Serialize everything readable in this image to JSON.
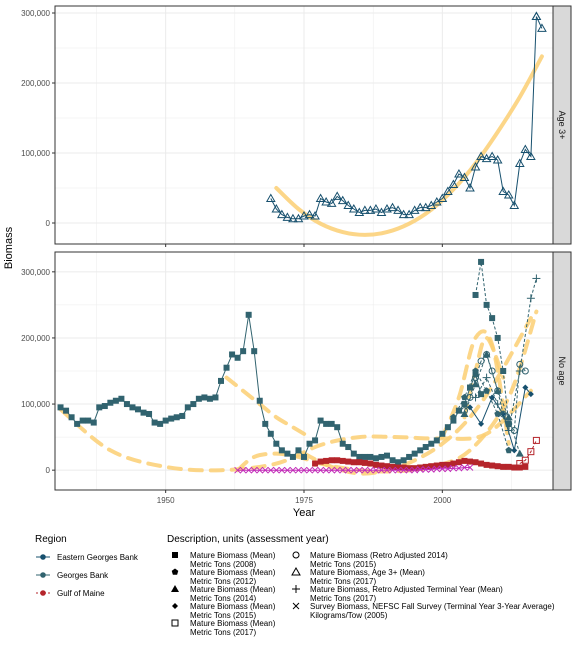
{
  "chart_data": {
    "type": "line",
    "xlabel": "Year",
    "ylabel": "Biomass",
    "xlim": [
      1930,
      2020
    ],
    "x_ticks": [
      1950,
      1975,
      2000
    ],
    "x_tick_labels": [
      "1950",
      "1975",
      "2000"
    ],
    "panels": [
      {
        "strip": "Age 3+",
        "ylim": [
          -30000,
          310000
        ],
        "y_ticks": [
          0,
          100000,
          200000,
          300000
        ],
        "y_tick_labels": [
          "0",
          "100,000",
          "200,000",
          "300,000"
        ],
        "series": [
          {
            "region": "Eastern Georges Bank",
            "marker": "triangle",
            "dashed": false,
            "x": [
              1969,
              1970,
              1971,
              1972,
              1973,
              1974,
              1975,
              1976,
              1977,
              1978,
              1979,
              1980,
              1981,
              1982,
              1983,
              1984,
              1985,
              1986,
              1987,
              1988,
              1989,
              1990,
              1991,
              1992,
              1993,
              1994,
              1995,
              1996,
              1997,
              1998,
              1999,
              2000,
              2001,
              2002,
              2003,
              2004,
              2005,
              2006,
              2007,
              2008,
              2009,
              2010,
              2011,
              2012,
              2013,
              2014,
              2015,
              2016,
              2017
            ],
            "y": [
              35000,
              20000,
              12000,
              8000,
              6000,
              6000,
              10000,
              12000,
              10000,
              35000,
              30000,
              28000,
              38000,
              32000,
              25000,
              20000,
              15000,
              18000,
              18000,
              20000,
              15000,
              20000,
              22000,
              18000,
              12000,
              12000,
              18000,
              22000,
              22000,
              25000,
              30000,
              35000,
              45000,
              55000,
              70000,
              65000,
              50000,
              80000,
              95000,
              92000,
              95000,
              90000,
              45000,
              40000,
              25000,
              85000,
              105000,
              95000,
              295000
            ]
          },
          {
            "region": "Eastern Georges Bank",
            "marker": "triangle",
            "dashed": false,
            "x": [
              2017,
              2018
            ],
            "y": [
              295000,
              278000
            ]
          }
        ],
        "trend": [
          {
            "color": "#fccf73",
            "dashed": false,
            "x": [
              1970,
              1974,
              1978,
              1982,
              1986,
              1990,
              1994,
              1998,
              2002,
              2006,
              2010,
              2014,
              2018
            ],
            "y": [
              50000,
              20000,
              -1000,
              -13000,
              -17000,
              -13000,
              -1000,
              19000,
              48000,
              85000,
              130000,
              180000,
              238000
            ]
          }
        ]
      },
      {
        "strip": "No age",
        "ylim": [
          -30000,
          330000
        ],
        "y_ticks": [
          0,
          100000,
          200000,
          300000
        ],
        "y_tick_labels": [
          "0",
          "100,000",
          "200,000",
          "300,000"
        ],
        "series": [
          {
            "region": "Georges Bank",
            "marker": "square",
            "dashed": false,
            "x": [
              1931,
              1932,
              1933,
              1934,
              1935,
              1936,
              1937,
              1938,
              1939,
              1940,
              1941,
              1942,
              1943,
              1944,
              1945,
              1946,
              1947,
              1948,
              1949,
              1950,
              1951,
              1952,
              1953,
              1954,
              1955,
              1956,
              1957,
              1958,
              1959,
              1960,
              1961,
              1962,
              1963,
              1964,
              1965,
              1966,
              1967,
              1968,
              1969,
              1970,
              1971,
              1972,
              1973,
              1974,
              1975,
              1976,
              1977,
              1978,
              1979,
              1980,
              1981,
              1982,
              1983,
              1984,
              1985,
              1986,
              1987,
              1988,
              1989,
              1990,
              1991,
              1992,
              1993,
              1994,
              1995,
              1996,
              1997,
              1998,
              1999,
              2000,
              2001,
              2002,
              2003,
              2004,
              2005,
              2006,
              2007
            ],
            "y": [
              95000,
              90000,
              80000,
              70000,
              75000,
              75000,
              72000,
              95000,
              97000,
              102000,
              105000,
              108000,
              100000,
              95000,
              92000,
              87000,
              85000,
              72000,
              70000,
              75000,
              78000,
              80000,
              82000,
              95000,
              100000,
              108000,
              110000,
              108000,
              110000,
              135000,
              155000,
              175000,
              170000,
              180000,
              235000,
              180000,
              105000,
              70000,
              55000,
              40000,
              30000,
              25000,
              20000,
              30000,
              20000,
              40000,
              45000,
              75000,
              70000,
              70000,
              65000,
              40000,
              35000,
              25000,
              20000,
              20000,
              20000,
              18000,
              20000,
              22000,
              15000,
              12000,
              15000,
              20000,
              25000,
              30000,
              35000,
              40000,
              45000,
              55000,
              65000,
              75000,
              90000,
              100000,
              125000,
              145000,
              115000
            ]
          },
          {
            "region": "Georges Bank",
            "marker": "pentagon",
            "dashed": true,
            "x": [
              2002,
              2004,
              2006,
              2008,
              2010,
              2012
            ],
            "y": [
              80000,
              110000,
              150000,
              120000,
              85000,
              30000
            ]
          },
          {
            "region": "Georges Bank",
            "marker": "triangle-filled",
            "dashed": true,
            "x": [
              2004,
              2006,
              2008,
              2010,
              2012,
              2014
            ],
            "y": [
              85000,
              130000,
              175000,
              120000,
              80000,
              25000
            ]
          },
          {
            "region": "Eastern Georges Bank",
            "marker": "diamond",
            "dashed": false,
            "x": [
              2005,
              2007,
              2009,
              2011,
              2013,
              2015,
              2016
            ],
            "y": [
              95000,
              70000,
              110000,
              85000,
              30000,
              125000,
              115000
            ]
          },
          {
            "region": "Georges Bank",
            "marker": "circle",
            "dashed": true,
            "x": [
              2004,
              2005,
              2006,
              2007,
              2008,
              2009,
              2010,
              2011,
              2012,
              2013,
              2014,
              2015
            ],
            "y": [
              90000,
              110000,
              140000,
              165000,
              175000,
              150000,
              120000,
              85000,
              70000,
              60000,
              160000,
              150000
            ]
          },
          {
            "region": "Georges Bank",
            "marker": "plus",
            "dashed": true,
            "x": [
              2006,
              2008,
              2010,
              2012,
              2014,
              2016,
              2017
            ],
            "y": [
              110000,
              140000,
              100000,
              60000,
              150000,
              260000,
              290000
            ]
          },
          {
            "region": "Georges Bank",
            "marker": "square",
            "dashed": true,
            "x": [
              2006,
              2007,
              2008,
              2009,
              2010,
              2011,
              2012
            ],
            "y": [
              265000,
              315000,
              250000,
              230000,
              200000,
              150000,
              70000
            ]
          },
          {
            "region": "Gulf of Maine",
            "marker": "square-filled",
            "dashed": false,
            "x": [
              1977,
              1978,
              1979,
              1980,
              1981,
              1982,
              1983,
              1984,
              1985,
              1986,
              1987,
              1988,
              1989,
              1990,
              1991,
              1992,
              1993,
              1994,
              1995,
              1996,
              1997,
              1998,
              1999,
              2000,
              2001,
              2002,
              2003,
              2004,
              2005,
              2006,
              2007,
              2008,
              2009,
              2010,
              2011,
              2012,
              2013,
              2014,
              2015
            ],
            "y": [
              10000,
              13000,
              14000,
              15000,
              15000,
              14000,
              13000,
              12000,
              12000,
              11000,
              10000,
              8000,
              7000,
              6000,
              5000,
              4000,
              4000,
              3000,
              3000,
              4000,
              5000,
              6000,
              7000,
              8000,
              8000,
              10000,
              12000,
              14000,
              13000,
              12000,
              10000,
              8000,
              7000,
              6000,
              5000,
              5000,
              4000,
              4000,
              5000
            ]
          },
          {
            "region": "Gulf of Maine",
            "marker": "square-open",
            "dashed": true,
            "x": [
              2014,
              2015,
              2016,
              2017
            ],
            "y": [
              10000,
              15000,
              28000,
              45000
            ]
          },
          {
            "region": "Gulf of Maine",
            "marker": "x",
            "dashed": false,
            "x": [
              1963,
              1964,
              1965,
              1966,
              1967,
              1968,
              1969,
              1970,
              1971,
              1972,
              1973,
              1974,
              1975,
              1976,
              1977,
              1978,
              1979,
              1980,
              1981,
              1982,
              1983,
              1984,
              1985,
              1986,
              1987,
              1988,
              1989,
              1990,
              1991,
              1992,
              1993,
              1994,
              1995,
              1996,
              1997,
              1998,
              1999,
              2000,
              2001,
              2002,
              2003,
              2004,
              2005
            ],
            "y": [
              0,
              0,
              0,
              0,
              0,
              0,
              0,
              0,
              0,
              0,
              0,
              0,
              0,
              0,
              0,
              0,
              0,
              0,
              0,
              0,
              0,
              0,
              0,
              0,
              0,
              0,
              0,
              0,
              0,
              0,
              0,
              0,
              0,
              1000,
              1000,
              1000,
              2000,
              2000,
              2000,
              3000,
              3000,
              4000,
              4000
            ]
          }
        ],
        "trend": [
          {
            "color": "#fccf73",
            "dashed": true,
            "x": [
              1931,
              1940,
              1950,
              1960,
              1970,
              1978,
              1985,
              1992,
              2000,
              2008,
              2016
            ],
            "y": [
              92000,
              30000,
              5000,
              0,
              10000,
              38000,
              50000,
              50000,
              48000,
              55000,
              120000
            ]
          },
          {
            "color": "#fccf73",
            "dashed": true,
            "x": [
              1961,
              1964,
              1967,
              1970,
              1973,
              1976
            ],
            "y": [
              140000,
              120000,
              100000,
              80000,
              65000,
              50000
            ]
          },
          {
            "color": "#fccf73",
            "dashed": true,
            "x": [
              1975,
              1980,
              1985,
              1990,
              1995,
              2000,
              2005,
              2010,
              2016
            ],
            "y": [
              25000,
              5000,
              -5000,
              0,
              15000,
              40000,
              80000,
              140000,
              230000
            ]
          },
          {
            "color": "#fccf73",
            "dashed": true,
            "x": [
              1963,
              1966,
              1970,
              1974,
              1978,
              1983,
              1990,
              1998,
              2005,
              2012,
              2017
            ],
            "y": [
              0,
              20000,
              25000,
              20000,
              10000,
              2000,
              -2000,
              5000,
              30000,
              110000,
              240000
            ]
          },
          {
            "color": "#fccf73",
            "dashed": true,
            "x": [
              2000,
              2003,
              2006,
              2009,
              2012
            ],
            "y": [
              50000,
              110000,
              200000,
              190000,
              40000
            ]
          },
          {
            "color": "#fccf73",
            "dashed": true,
            "x": [
              2004,
              2006,
              2008,
              2011
            ],
            "y": [
              80000,
              150000,
              200000,
              140000
            ]
          }
        ]
      }
    ],
    "legend": {
      "placement": "bottom",
      "region_title": "Region",
      "regions": [
        {
          "label": "Eastern Georges Bank",
          "color": "#17506e",
          "dashed": false
        },
        {
          "label": "Georges Bank",
          "color": "#31636f",
          "dashed": false
        },
        {
          "label": "Gulf of Maine",
          "color": "#b5252b",
          "dashed": true
        }
      ],
      "desc_title": "Description, units (assessment year)",
      "descriptions": [
        {
          "marker": "square",
          "lines": [
            "Mature Biomass (Mean)",
            "Metric Tons (2008)"
          ]
        },
        {
          "marker": "pentagon",
          "lines": [
            "Mature Biomass (Mean)",
            "Metric Tons (2012)"
          ]
        },
        {
          "marker": "triangle-filled",
          "lines": [
            "Mature Biomass (Mean)",
            "Metric Tons (2014)"
          ]
        },
        {
          "marker": "diamond",
          "lines": [
            "Mature Biomass (Mean)",
            "Metric Tons (2015)"
          ]
        },
        {
          "marker": "square-open",
          "lines": [
            "Mature Biomass (Mean)",
            "Metric Tons (2017)"
          ]
        },
        {
          "marker": "circle",
          "lines": [
            "Mature Biomass (Retro Adjusted 2014)",
            "Metric Tons (2015)"
          ]
        },
        {
          "marker": "triangle",
          "lines": [
            "Mature Biomass, Age 3+ (Mean)",
            "Metric Tons (2017)"
          ]
        },
        {
          "marker": "plus",
          "lines": [
            "Mature Biomass, Retro Adjusted Terminal Year (Mean)",
            "Metric Tons (2017)"
          ]
        },
        {
          "marker": "x",
          "lines": [
            "Survey Biomass, NEFSC Fall Survey (Terminal Year 3-Year Average)",
            "Kilograms/Tow (2005)"
          ]
        }
      ]
    },
    "colors": {
      "eastern_georges_bank": "#17506e",
      "georges_bank": "#31636f",
      "gulf_of_maine": "#b5252b",
      "survey": "#c22bb8",
      "trend": "#fccf73",
      "strip": "#d9d9d9",
      "grid": "#ebebeb"
    }
  }
}
